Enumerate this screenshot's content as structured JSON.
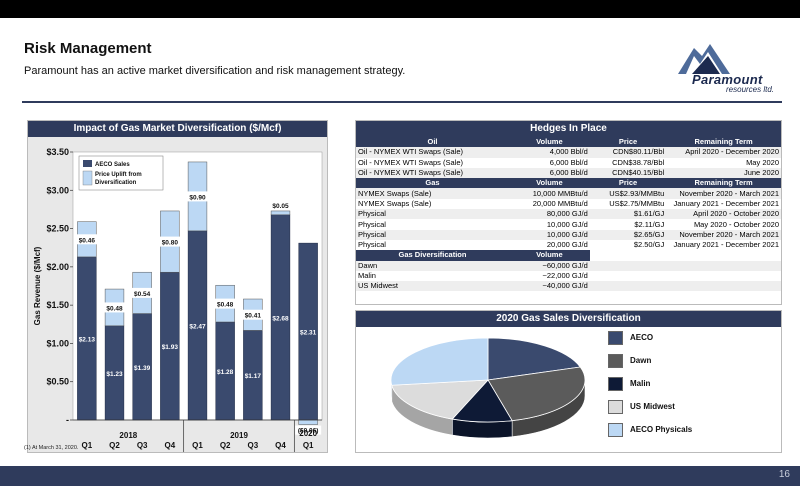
{
  "header": {
    "title": "Risk Management",
    "subtitle": "Paramount has an active market diversification and risk management strategy."
  },
  "logo": {
    "name": "Paramount",
    "sub": "resources ltd."
  },
  "colors": {
    "navy": "#2f3b5c",
    "aeco": "#3a4a6e",
    "uplift": "#bcd8f4"
  },
  "chart_panel": {
    "title": "Impact of Gas Market Diversification ($/Mcf)"
  },
  "chart_data": {
    "type": "bar",
    "title": "Impact of Gas Market Diversification ($/Mcf)",
    "ylabel": "Gas Revenue ($/Mcf)",
    "ylim": [
      0,
      3.5
    ],
    "yticks": [
      "-",
      "$0.50",
      "$1.00",
      "$1.50",
      "$2.00",
      "$2.50",
      "$3.00",
      "$3.50"
    ],
    "categories": [
      "Q1",
      "Q2",
      "Q3",
      "Q4",
      "Q1",
      "Q2",
      "Q3",
      "Q4",
      "Q1"
    ],
    "groups": [
      {
        "label": "2018",
        "span": 4
      },
      {
        "label": "2019",
        "span": 4
      },
      {
        "label": "2020",
        "span": 1
      }
    ],
    "series": [
      {
        "name": "AECO Sales",
        "color": "#3a4a6e",
        "values": [
          2.13,
          1.23,
          1.39,
          1.93,
          2.47,
          1.28,
          1.17,
          2.68,
          2.31
        ],
        "labels": [
          "$2.13",
          "$1.23",
          "$1.39",
          "$1.93",
          "$2.47",
          "$1.28",
          "$1.17",
          "$2.68",
          "$2.31"
        ]
      },
      {
        "name": "Price Uplift from Diversification",
        "color": "#bcd8f4",
        "values": [
          0.46,
          0.48,
          0.54,
          0.8,
          0.9,
          0.48,
          0.41,
          0.05,
          -0.06
        ],
        "labels": [
          "$0.46",
          "$0.48",
          "$0.54",
          "$0.80",
          "$0.90",
          "$0.48",
          "$0.41",
          "$0.05",
          "($0.06)"
        ]
      }
    ],
    "legend": "top-left"
  },
  "hedges": {
    "title": "Hedges In Place",
    "oil_header": [
      "Oil",
      "Volume",
      "Price",
      "Remaining Term"
    ],
    "oil_rows": [
      [
        "Oil - NYMEX WTI Swaps (Sale)",
        "4,000 Bbl/d",
        "CDN$80.11/Bbl",
        "April 2020 - December 2020"
      ],
      [
        "Oil - NYMEX WTI Swaps (Sale)",
        "6,000 Bbl/d",
        "CDN$38.78/Bbl",
        "May 2020"
      ],
      [
        "Oil - NYMEX WTI Swaps (Sale)",
        "6,000 Bbl/d",
        "CDN$40.15/Bbl",
        "June 2020"
      ]
    ],
    "gas_header": [
      "Gas",
      "Volume",
      "Price",
      "Remaining Term"
    ],
    "gas_rows": [
      [
        "NYMEX Swaps (Sale)",
        "10,000 MMBtu/d",
        "US$2.93/MMBtu",
        "November 2020 - March 2021"
      ],
      [
        "NYMEX Swaps (Sale)",
        "20,000 MMBtu/d",
        "US$2.75/MMBtu",
        "January 2021 - December 2021"
      ],
      [
        "Physical",
        "80,000 GJ/d",
        "$1.61/GJ",
        "April 2020 - October 2020"
      ],
      [
        "Physical",
        "10,000 GJ/d",
        "$2.11/GJ",
        "May 2020 - October 2020"
      ],
      [
        "Physical",
        "10,000 GJ/d",
        "$2.65/GJ",
        "November 2020 - March 2021"
      ],
      [
        "Physical",
        "20,000 GJ/d",
        "$2.50/GJ",
        "January 2021 - December 2021"
      ]
    ],
    "div_header": [
      "Gas Diversification",
      "Volume"
    ],
    "div_rows": [
      [
        "Dawn",
        "~60,000 GJ/d"
      ],
      [
        "Malin",
        "~22,000 GJ/d"
      ],
      [
        "US Midwest",
        "~40,000 GJ/d"
      ]
    ]
  },
  "pie": {
    "title": "2020 Gas Sales Diversification",
    "slices": [
      {
        "name": "AECO",
        "color": "#3a4a6e",
        "share": 0.2
      },
      {
        "name": "Dawn",
        "color": "#5b5b5b",
        "share": 0.26
      },
      {
        "name": "Malin",
        "color": "#0e1a36",
        "share": 0.1
      },
      {
        "name": "US Midwest",
        "color": "#dcdcdc",
        "share": 0.17
      },
      {
        "name": "AECO Physicals",
        "color": "#bcd8f4",
        "share": 0.27
      }
    ]
  },
  "footnote": "(1) At March 31, 2020.",
  "page_number": "16"
}
